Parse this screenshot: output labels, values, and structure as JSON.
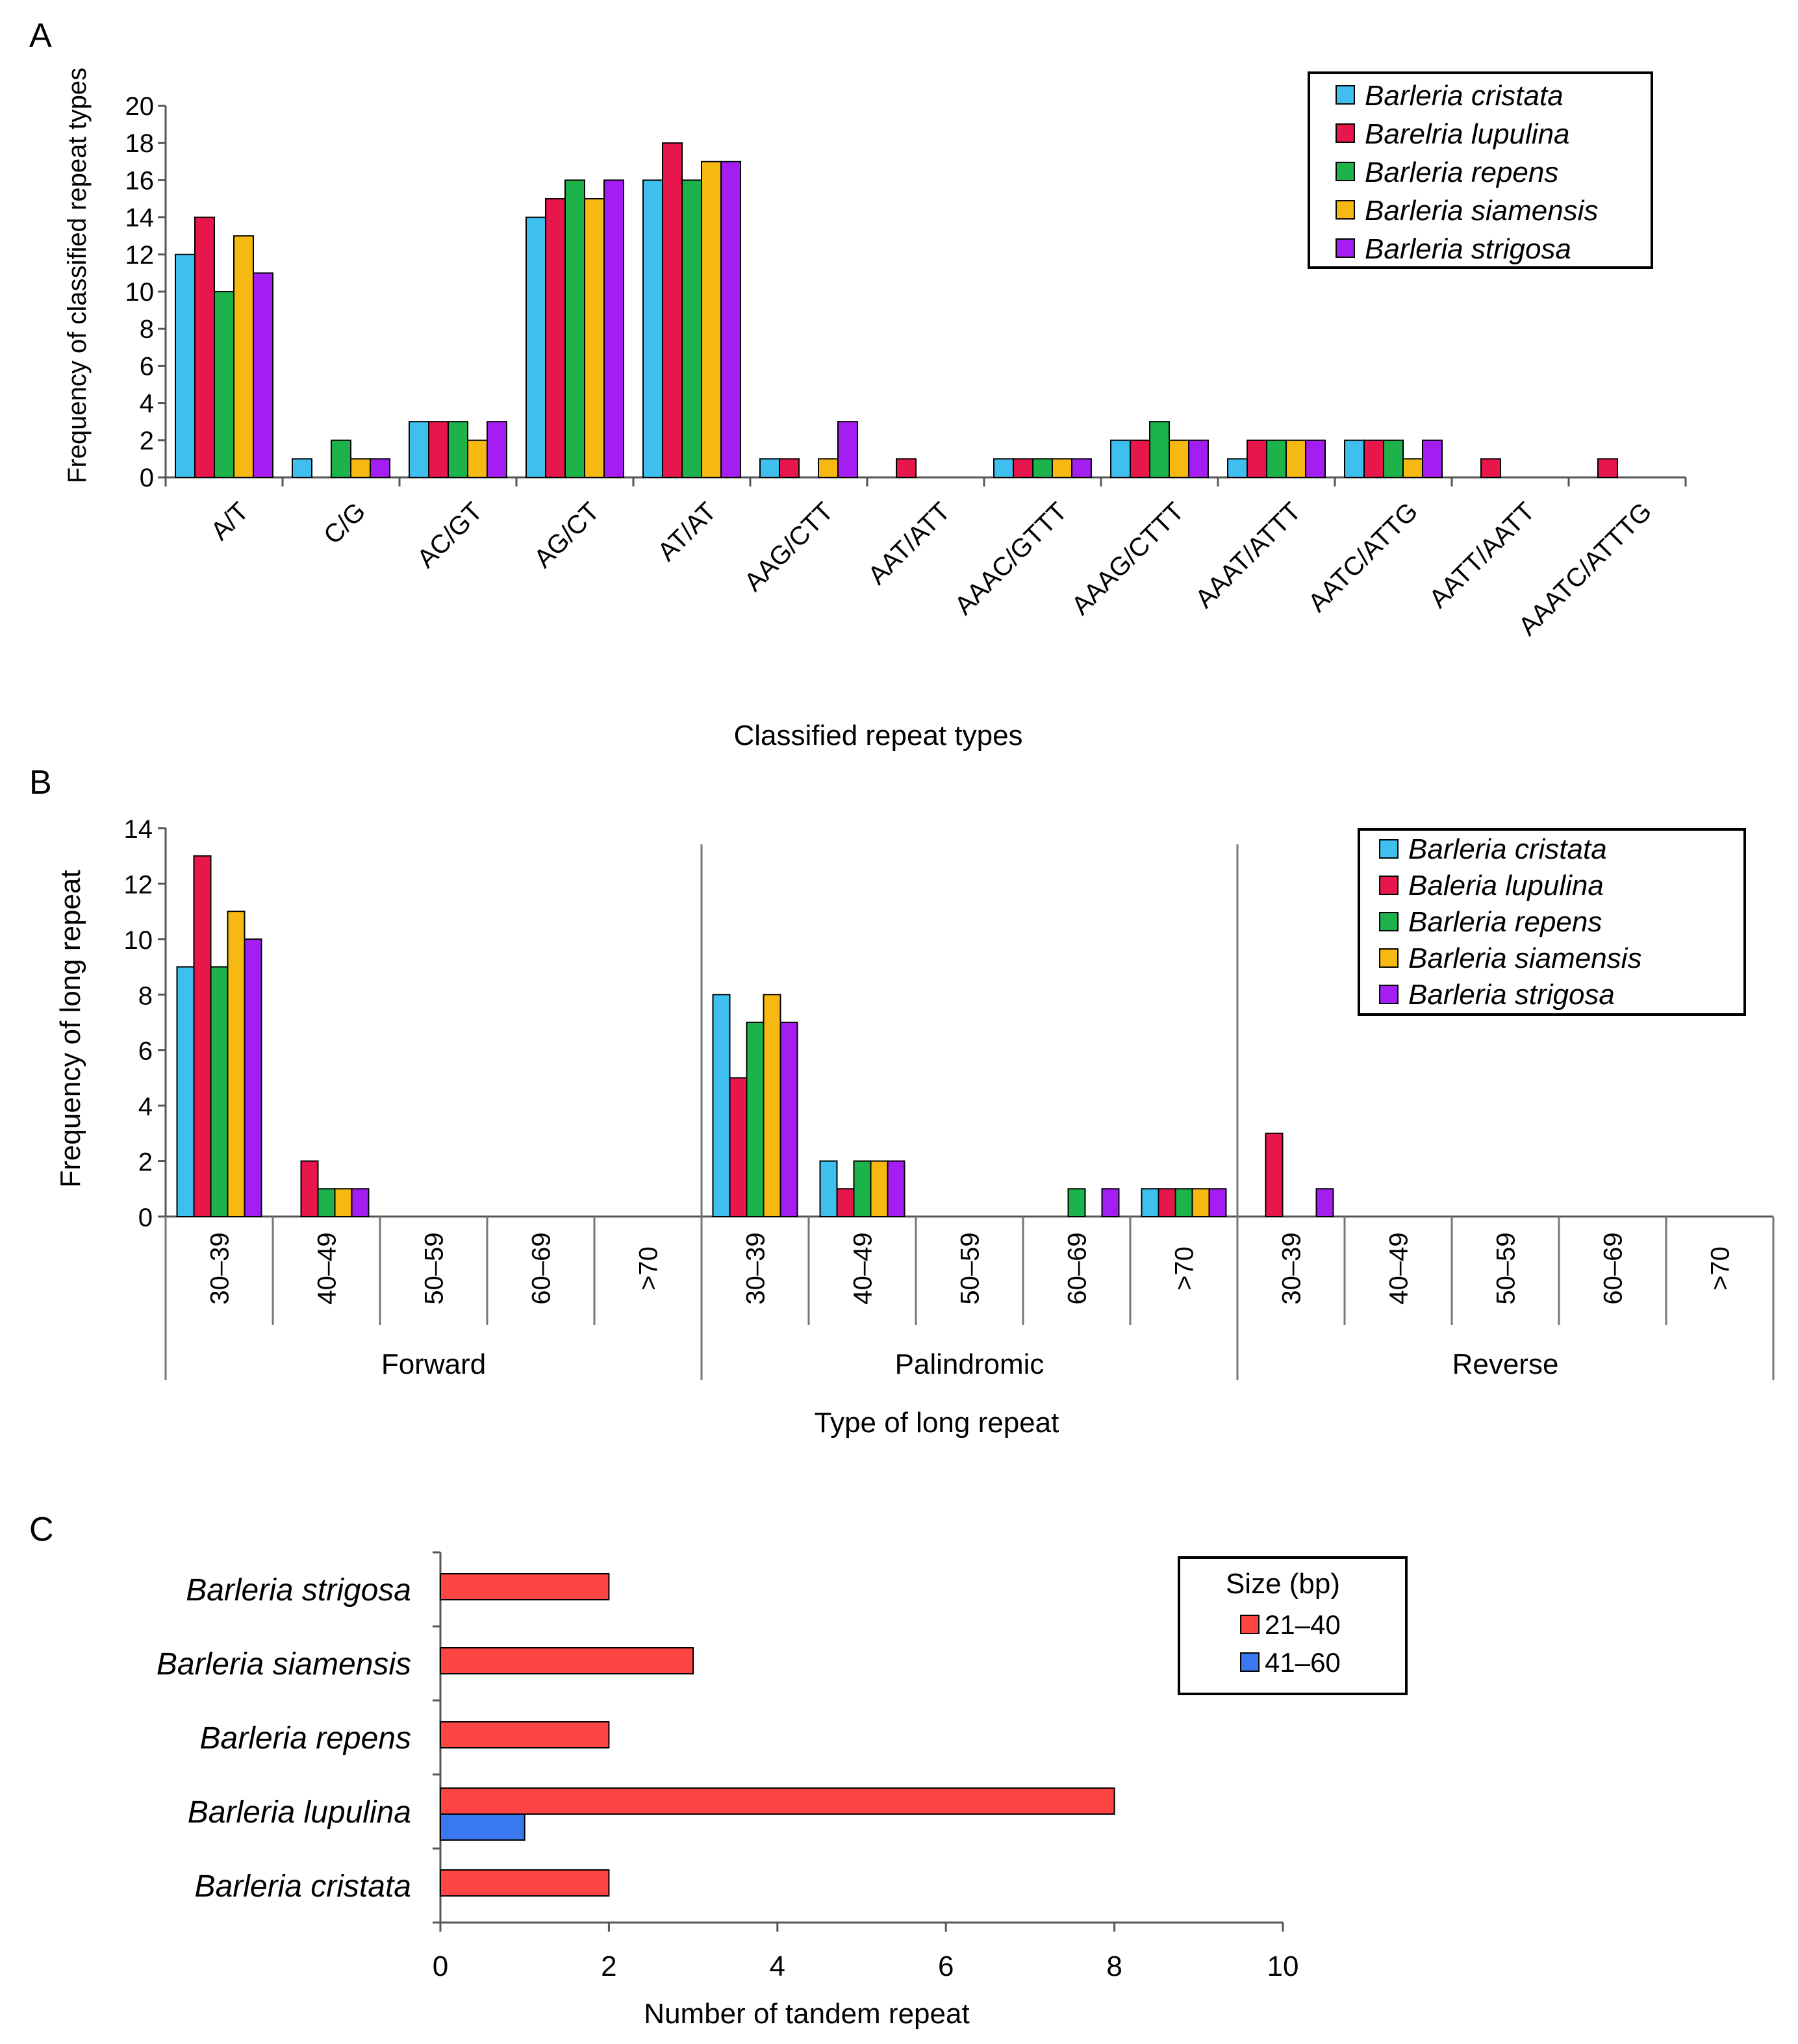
{
  "panels": [
    {
      "letter": "A",
      "chart_data": {
        "type": "bar",
        "title": "",
        "xlabel": "Classified repeat types",
        "ylabel": "Frequency of classified repeat types",
        "ylim": [
          0,
          20
        ],
        "yticks": [
          0,
          2,
          4,
          6,
          8,
          10,
          12,
          14,
          16,
          18,
          20
        ],
        "categories": [
          "A/T",
          "C/G",
          "AC/GT",
          "AG/CT",
          "AT/AT",
          "AAG/CTT",
          "AAT/ATT",
          "AAAC/GTTT",
          "AAAG/CTTT",
          "AAAT/ATTT",
          "AATC/ATTG",
          "AATT/AATT",
          "AAATC/ATTTG"
        ],
        "legend_position": "top-right",
        "series": [
          {
            "name": "Barleria cristata",
            "color": "#3fbfee",
            "values": [
              12,
              1,
              3,
              14,
              16,
              1,
              0,
              1,
              2,
              1,
              2,
              0,
              0
            ]
          },
          {
            "name": "Barelria lupulina",
            "color": "#e8174b",
            "values": [
              14,
              0,
              3,
              15,
              18,
              1,
              1,
              1,
              2,
              2,
              2,
              1,
              1
            ]
          },
          {
            "name": "Barleria repens",
            "color": "#1cb34a",
            "values": [
              10,
              2,
              3,
              16,
              16,
              0,
              0,
              1,
              3,
              2,
              2,
              0,
              0
            ]
          },
          {
            "name": "Barleria siamensis",
            "color": "#f6b912",
            "values": [
              13,
              1,
              2,
              15,
              17,
              1,
              0,
              1,
              2,
              2,
              1,
              0,
              0
            ]
          },
          {
            "name": "Barleria strigosa",
            "color": "#a41ef2",
            "values": [
              11,
              1,
              3,
              16,
              17,
              3,
              0,
              1,
              2,
              2,
              2,
              0,
              0
            ]
          }
        ]
      }
    },
    {
      "letter": "B",
      "chart_data": {
        "type": "bar",
        "title": "",
        "xlabel": "Type of long repeat",
        "ylabel": "Frequency of long repeat",
        "ylim": [
          0,
          14
        ],
        "yticks": [
          0,
          2,
          4,
          6,
          8,
          10,
          12,
          14
        ],
        "groups": [
          "Forward",
          "Palindromic",
          "Reverse"
        ],
        "subcategories": [
          "30–39",
          "40–49",
          "50–59",
          "60–69",
          ">70"
        ],
        "legend_position": "top-right",
        "series": [
          {
            "name": "Barleria cristata",
            "color": "#3fbfee",
            "values": [
              [
                9,
                0,
                0,
                0,
                0
              ],
              [
                8,
                2,
                0,
                0,
                1
              ],
              [
                0,
                0,
                0,
                0,
                0
              ]
            ]
          },
          {
            "name": "Baleria lupulina",
            "color": "#e8174b",
            "values": [
              [
                13,
                2,
                0,
                0,
                0
              ],
              [
                5,
                1,
                0,
                0,
                1
              ],
              [
                3,
                0,
                0,
                0,
                0
              ]
            ]
          },
          {
            "name": "Barleria repens",
            "color": "#1cb34a",
            "values": [
              [
                9,
                1,
                0,
                0,
                0
              ],
              [
                7,
                2,
                0,
                1,
                1
              ],
              [
                0,
                0,
                0,
                0,
                0
              ]
            ]
          },
          {
            "name": "Barleria siamensis",
            "color": "#f6b912",
            "values": [
              [
                11,
                1,
                0,
                0,
                0
              ],
              [
                8,
                2,
                0,
                0,
                1
              ],
              [
                0,
                0,
                0,
                0,
                0
              ]
            ]
          },
          {
            "name": "Barleria strigosa",
            "color": "#a41ef2",
            "values": [
              [
                10,
                1,
                0,
                0,
                0
              ],
              [
                7,
                2,
                0,
                1,
                1
              ],
              [
                1,
                0,
                0,
                0,
                0
              ]
            ]
          }
        ]
      }
    },
    {
      "letter": "C",
      "chart_data": {
        "type": "bar",
        "orientation": "horizontal",
        "title": "",
        "xlabel": "Number of tandem repeat",
        "ylabel": "",
        "xlim": [
          0,
          10
        ],
        "xticks": [
          0,
          2,
          4,
          6,
          8,
          10
        ],
        "categories": [
          "Barleria strigosa",
          "Barleria siamensis",
          "Barleria repens",
          "Barleria lupulina",
          "Barleria cristata"
        ],
        "legend_title": "Size (bp)",
        "legend_position": "top-right",
        "series": [
          {
            "name": "21–40",
            "color": "#ff4444",
            "values": [
              2,
              3,
              2,
              8,
              2
            ]
          },
          {
            "name": "41–60",
            "color": "#3a78f0",
            "values": [
              0,
              0,
              0,
              1,
              0
            ]
          }
        ]
      }
    }
  ]
}
